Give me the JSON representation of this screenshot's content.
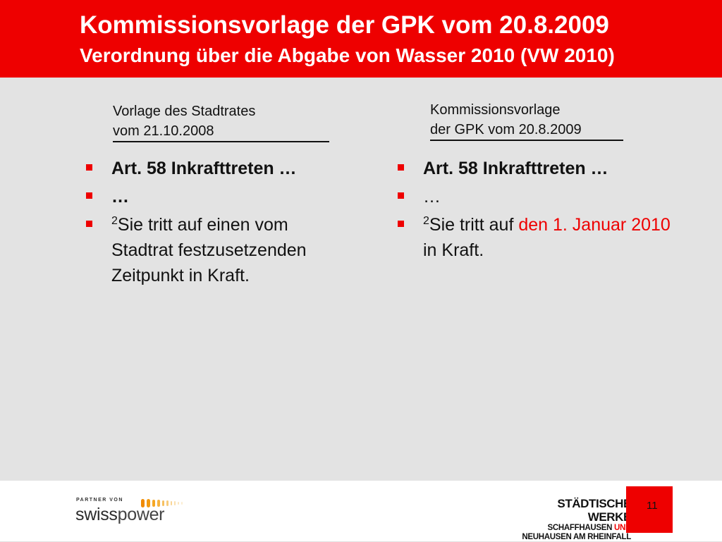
{
  "header": {
    "title": "Kommissionsvorlage der GPK vom 20.8.2009",
    "subtitle": "Verordnung über die Abgabe von Wasser 2010 (VW 2010)"
  },
  "left_column": {
    "heading_line1": "Vorlage des Stadtrates",
    "heading_line2": "vom 21.10.2008",
    "bullet1": "Art. 58 Inkrafttreten …",
    "bullet2": "…",
    "bullet3_sup": "2",
    "bullet3_text": "Sie tritt auf einen vom Stadtrat festzusetzenden Zeitpunkt in Kraft."
  },
  "right_column": {
    "heading_line1": "Kommissionsvorlage",
    "heading_line2": "der GPK vom 20.8.2009",
    "bullet1": "Art. 58 Inkrafttreten …",
    "bullet2": "…",
    "bullet3_sup": "2",
    "bullet3_pre": "Sie tritt auf ",
    "bullet3_red": "den 1. Januar 2010",
    "bullet3_post": " in Kraft."
  },
  "footer": {
    "partner_label": "PARTNER VON",
    "swiss_part1": "swiss",
    "swiss_part2": "power",
    "logo_line1": "STÄDTISCHE WERKE",
    "logo_line2a": "SCHAFFHAUSEN ",
    "logo_line2b": "UND",
    "logo_line3": "NEUHAUSEN AM RHEINFALL",
    "page_number": "11"
  },
  "colors": {
    "brand_red": "#ee0000",
    "background_gray": "#e3e3e3",
    "footer_white": "#ffffff"
  }
}
